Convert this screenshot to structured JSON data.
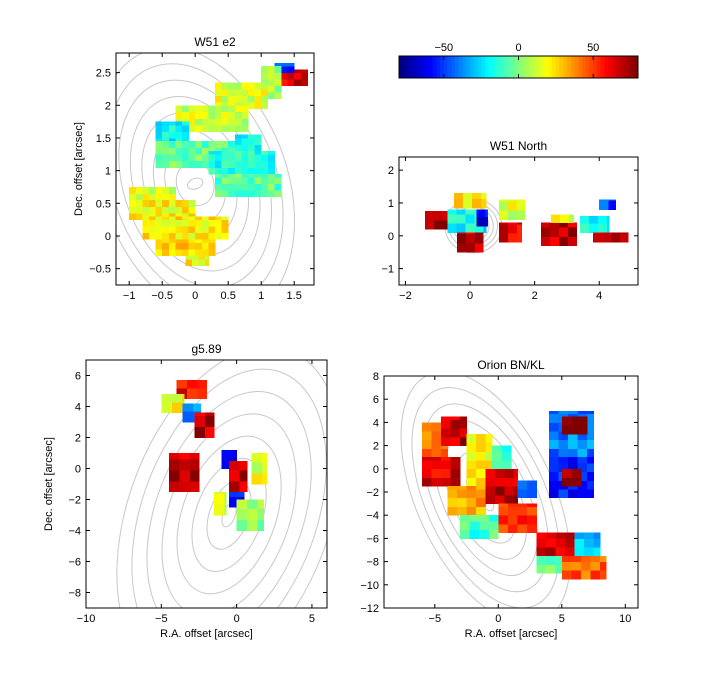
{
  "figure": {
    "colorbar": {
      "ticks": [
        -50,
        0,
        50
      ],
      "range": [
        -80,
        80
      ],
      "colormap": "jet"
    }
  },
  "chart_data": [
    {
      "type": "heatmap",
      "title": "W51 e2",
      "xlabel": "",
      "ylabel": "Dec. offset [arcsec]",
      "xlim": [
        -1.2,
        1.8
      ],
      "ylim": [
        -0.75,
        2.8
      ],
      "xticks": [
        -1,
        -0.5,
        0,
        0.5,
        1,
        1.5
      ],
      "yticks": [
        -0.5,
        0,
        0.5,
        1,
        1.5,
        2,
        2.5
      ],
      "cell": 0.1,
      "regions": [
        {
          "x0": 1.2,
          "x1": 1.7,
          "y0": 2.3,
          "y1": 2.55,
          "value": 65
        },
        {
          "x0": 1.2,
          "x1": 1.5,
          "y0": 2.5,
          "y1": 2.65,
          "value": -50
        },
        {
          "x0": 1.0,
          "x1": 1.3,
          "y0": 2.1,
          "y1": 2.6,
          "value": 5
        },
        {
          "x0": 0.3,
          "x1": 1.1,
          "y0": 1.95,
          "y1": 2.35,
          "value": 15
        },
        {
          "x0": -0.3,
          "x1": 0.8,
          "y0": 1.6,
          "y1": 2.0,
          "value": 12
        },
        {
          "x0": -0.6,
          "x1": -0.1,
          "y0": 1.4,
          "y1": 1.75,
          "value": -20
        },
        {
          "x0": -0.6,
          "x1": 0.6,
          "y0": 1.05,
          "y1": 1.45,
          "value": -5
        },
        {
          "x0": 0.6,
          "x1": 1.0,
          "y0": 1.3,
          "y1": 1.55,
          "value": -20
        },
        {
          "x0": 0.2,
          "x1": 1.2,
          "y0": 0.95,
          "y1": 1.3,
          "value": -15
        },
        {
          "x0": 0.3,
          "x1": 1.3,
          "y0": 0.6,
          "y1": 0.95,
          "value": -5
        },
        {
          "x0": -1.0,
          "x1": -0.3,
          "y0": 0.55,
          "y1": 0.75,
          "value": 15
        },
        {
          "x0": -1.0,
          "x1": 0.0,
          "y0": 0.25,
          "y1": 0.55,
          "value": 20
        },
        {
          "x0": -0.8,
          "x1": 0.5,
          "y0": -0.05,
          "y1": 0.3,
          "value": 22
        },
        {
          "x0": -0.6,
          "x1": 0.3,
          "y0": -0.3,
          "y1": -0.05,
          "value": 25
        },
        {
          "x0": -0.15,
          "x1": 0.2,
          "y0": -0.45,
          "y1": -0.3,
          "value": 20
        }
      ],
      "contours": {
        "cx": 0,
        "cy": 0.8,
        "levels": 9,
        "rx0": 0.12,
        "ry0": 0.08,
        "rxs": 0.16,
        "rys": 0.26,
        "angle": -20
      }
    },
    {
      "type": "heatmap",
      "title": "W51 North",
      "xlabel": "",
      "ylabel": "",
      "xlim": [
        -2.2,
        5.2
      ],
      "ylim": [
        -1.5,
        2.4
      ],
      "xticks": [
        -2,
        0,
        2,
        4
      ],
      "yticks": [
        -1,
        0,
        1,
        2
      ],
      "cell": 0.28,
      "regions": [
        {
          "x0": -1.4,
          "x1": -0.3,
          "y0": 0.2,
          "y1": 0.75,
          "value": 70
        },
        {
          "x0": -0.5,
          "x1": 0.5,
          "y0": 0.85,
          "y1": 1.3,
          "value": 25
        },
        {
          "x0": -0.7,
          "x1": 0.5,
          "y0": 0.1,
          "y1": 0.8,
          "value": -20
        },
        {
          "x0": 0.2,
          "x1": 0.55,
          "y0": 0.3,
          "y1": 0.8,
          "value": -60
        },
        {
          "x0": -0.4,
          "x1": 0.4,
          "y0": -0.5,
          "y1": 0.1,
          "value": 70
        },
        {
          "x0": 0.9,
          "x1": 1.7,
          "y0": 0.5,
          "y1": 1.1,
          "value": 15
        },
        {
          "x0": 0.9,
          "x1": 1.6,
          "y0": -0.2,
          "y1": 0.4,
          "value": 65
        },
        {
          "x0": 2.2,
          "x1": 3.3,
          "y0": -0.3,
          "y1": 0.4,
          "value": 70
        },
        {
          "x0": 2.5,
          "x1": 3.2,
          "y0": 0.4,
          "y1": 0.65,
          "value": 15
        },
        {
          "x0": 3.4,
          "x1": 4.3,
          "y0": 0.1,
          "y1": 0.6,
          "value": -20
        },
        {
          "x0": 4.0,
          "x1": 4.5,
          "y0": 0.8,
          "y1": 1.1,
          "value": -50
        },
        {
          "x0": 3.8,
          "x1": 4.9,
          "y0": -0.2,
          "y1": 0.1,
          "value": 70
        }
      ],
      "contours": {
        "cx": 0.1,
        "cy": 0.3,
        "levels": 7,
        "rx0": 0.1,
        "ry0": 0.1,
        "rxs": 0.13,
        "rys": 0.12,
        "angle": 0
      }
    },
    {
      "type": "heatmap",
      "title": "g5.89",
      "xlabel": "R.A. offset [arcsec]",
      "ylabel": "Dec. offset [arcsec]",
      "xlim": [
        -10,
        6
      ],
      "ylim": [
        -9,
        7
      ],
      "xticks": [
        -10,
        -5,
        0,
        5
      ],
      "yticks": [
        -8,
        -6,
        -4,
        -2,
        0,
        2,
        4,
        6
      ],
      "cell": 0.7,
      "regions": [
        {
          "x0": -4.0,
          "x1": -2.0,
          "y0": 4.5,
          "y1": 5.7,
          "value": 60
        },
        {
          "x0": -5.0,
          "x1": -3.5,
          "y0": 3.6,
          "y1": 4.8,
          "value": 20
        },
        {
          "x0": -3.6,
          "x1": -2.4,
          "y0": 3.0,
          "y1": 4.2,
          "value": -40
        },
        {
          "x0": -2.8,
          "x1": -1.5,
          "y0": 2.0,
          "y1": 3.6,
          "value": 70
        },
        {
          "x0": -4.5,
          "x1": -2.5,
          "y0": -1.5,
          "y1": 1.0,
          "value": 70
        },
        {
          "x0": -1.0,
          "x1": 0.0,
          "y0": 0.0,
          "y1": 1.2,
          "value": -70
        },
        {
          "x0": -0.5,
          "x1": 0.7,
          "y0": -1.5,
          "y1": 0.5,
          "value": 70
        },
        {
          "x0": 1.0,
          "x1": 2.0,
          "y0": -1.0,
          "y1": 1.0,
          "value": 15
        },
        {
          "x0": -0.5,
          "x1": 0.5,
          "y0": -2.5,
          "y1": -1.5,
          "value": -60
        },
        {
          "x0": 0.0,
          "x1": 1.8,
          "y0": -4.0,
          "y1": -2.0,
          "value": 5
        },
        {
          "x0": -1.5,
          "x1": -0.7,
          "y0": -3.0,
          "y1": -1.5,
          "value": 15
        }
      ],
      "contours": {
        "cx": -0.5,
        "cy": -3.0,
        "levels": 8,
        "rx0": 0.4,
        "ry0": 0.8,
        "rxs": 0.9,
        "rys": 1.5,
        "angle": 20
      }
    },
    {
      "type": "heatmap",
      "title": "Orion BN/KL",
      "xlabel": "R.A. offset [arcsec]",
      "ylabel": "",
      "xlim": [
        -9,
        11
      ],
      "ylim": [
        -12,
        8
      ],
      "xticks": [
        -5,
        0,
        5,
        10
      ],
      "yticks": [
        -12,
        -10,
        -8,
        -6,
        -4,
        -2,
        0,
        2,
        4,
        6,
        8
      ],
      "cell": 0.75,
      "regions": [
        {
          "x0": -6.0,
          "x1": -4.0,
          "y0": 1.0,
          "y1": 4.0,
          "value": 45
        },
        {
          "x0": -4.5,
          "x1": -2.5,
          "y0": 2.0,
          "y1": 4.5,
          "value": 70
        },
        {
          "x0": -6.0,
          "x1": -3.0,
          "y0": -1.5,
          "y1": 1.0,
          "value": 65
        },
        {
          "x0": -2.5,
          "x1": -0.5,
          "y0": -1.5,
          "y1": 3.0,
          "value": 20
        },
        {
          "x0": -0.5,
          "x1": 1.0,
          "y0": 0.0,
          "y1": 2.0,
          "value": -10
        },
        {
          "x0": -4.0,
          "x1": -1.0,
          "y0": -4.0,
          "y1": -1.5,
          "value": 35
        },
        {
          "x0": -1.0,
          "x1": 1.5,
          "y0": -3.0,
          "y1": 0.0,
          "value": 70
        },
        {
          "x0": -3.0,
          "x1": 0.0,
          "y0": -6.0,
          "y1": -4.0,
          "value": -10
        },
        {
          "x0": 0.0,
          "x1": 3.0,
          "y0": -5.5,
          "y1": -3.0,
          "value": 50
        },
        {
          "x0": 1.5,
          "x1": 3.0,
          "y0": -2.5,
          "y1": -1.0,
          "value": -40
        },
        {
          "x0": 4.0,
          "x1": 7.5,
          "y0": 1.0,
          "y1": 5.0,
          "value": -40
        },
        {
          "x0": 5.0,
          "x1": 7.0,
          "y0": 3.0,
          "y1": 4.5,
          "value": 80
        },
        {
          "x0": 4.0,
          "x1": 7.5,
          "y0": -2.5,
          "y1": 1.0,
          "value": -55
        },
        {
          "x0": 5.0,
          "x1": 6.5,
          "y0": -1.5,
          "y1": 0.0,
          "value": 80
        },
        {
          "x0": 3.0,
          "x1": 6.0,
          "y0": -7.5,
          "y1": -5.5,
          "value": 70
        },
        {
          "x0": 6.0,
          "x1": 8.0,
          "y0": -7.5,
          "y1": -5.5,
          "value": -30
        },
        {
          "x0": 5.0,
          "x1": 8.5,
          "y0": -9.5,
          "y1": -7.5,
          "value": 45
        },
        {
          "x0": 3.0,
          "x1": 5.0,
          "y0": -9.0,
          "y1": -7.5,
          "value": 0
        }
      ],
      "contours": {
        "cx": -1.0,
        "cy": -2.5,
        "levels": 8,
        "rx0": 0.5,
        "ry0": 1.2,
        "rxs": 0.7,
        "rys": 1.5,
        "angle": -25
      }
    }
  ]
}
